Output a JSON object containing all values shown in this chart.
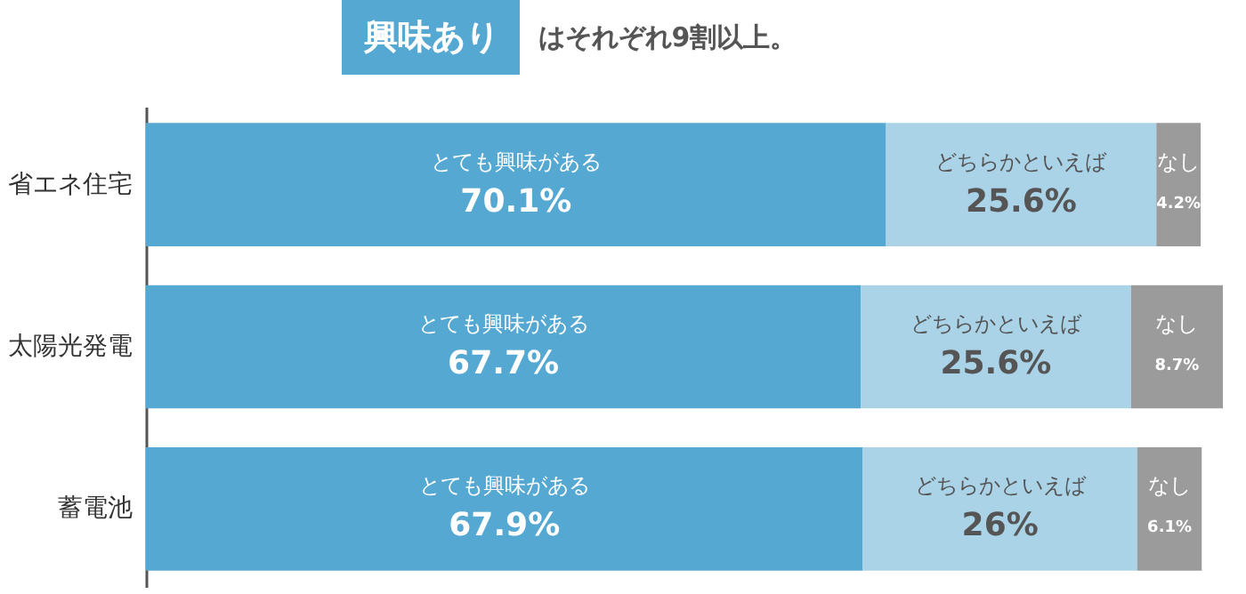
{
  "chart_data": {
    "type": "bar",
    "orientation": "horizontal",
    "stacked": true,
    "title": "興味あり",
    "subtitle": "はそれぞれ9割以上。",
    "categories": [
      "省エネ住宅",
      "太陽光発電",
      "蓄電池"
    ],
    "xlim": [
      0,
      102
    ],
    "legend": false,
    "grid": false,
    "series": [
      {
        "name": "とても興味がある",
        "color": "#55a8d2",
        "values": [
          70.1,
          67.7,
          67.9
        ],
        "value_labels": [
          "70.1%",
          "67.7%",
          "67.9%"
        ]
      },
      {
        "name": "どちらかといえば",
        "color": "#aad3e8",
        "values": [
          25.6,
          25.6,
          26
        ],
        "value_labels": [
          "25.6%",
          "25.6%",
          "26%"
        ]
      },
      {
        "name": "なし",
        "color": "#9b9b9b",
        "values": [
          4.2,
          8.7,
          6.1
        ],
        "value_labels": [
          "4.2%",
          "8.7%",
          "6.1%"
        ]
      }
    ]
  }
}
